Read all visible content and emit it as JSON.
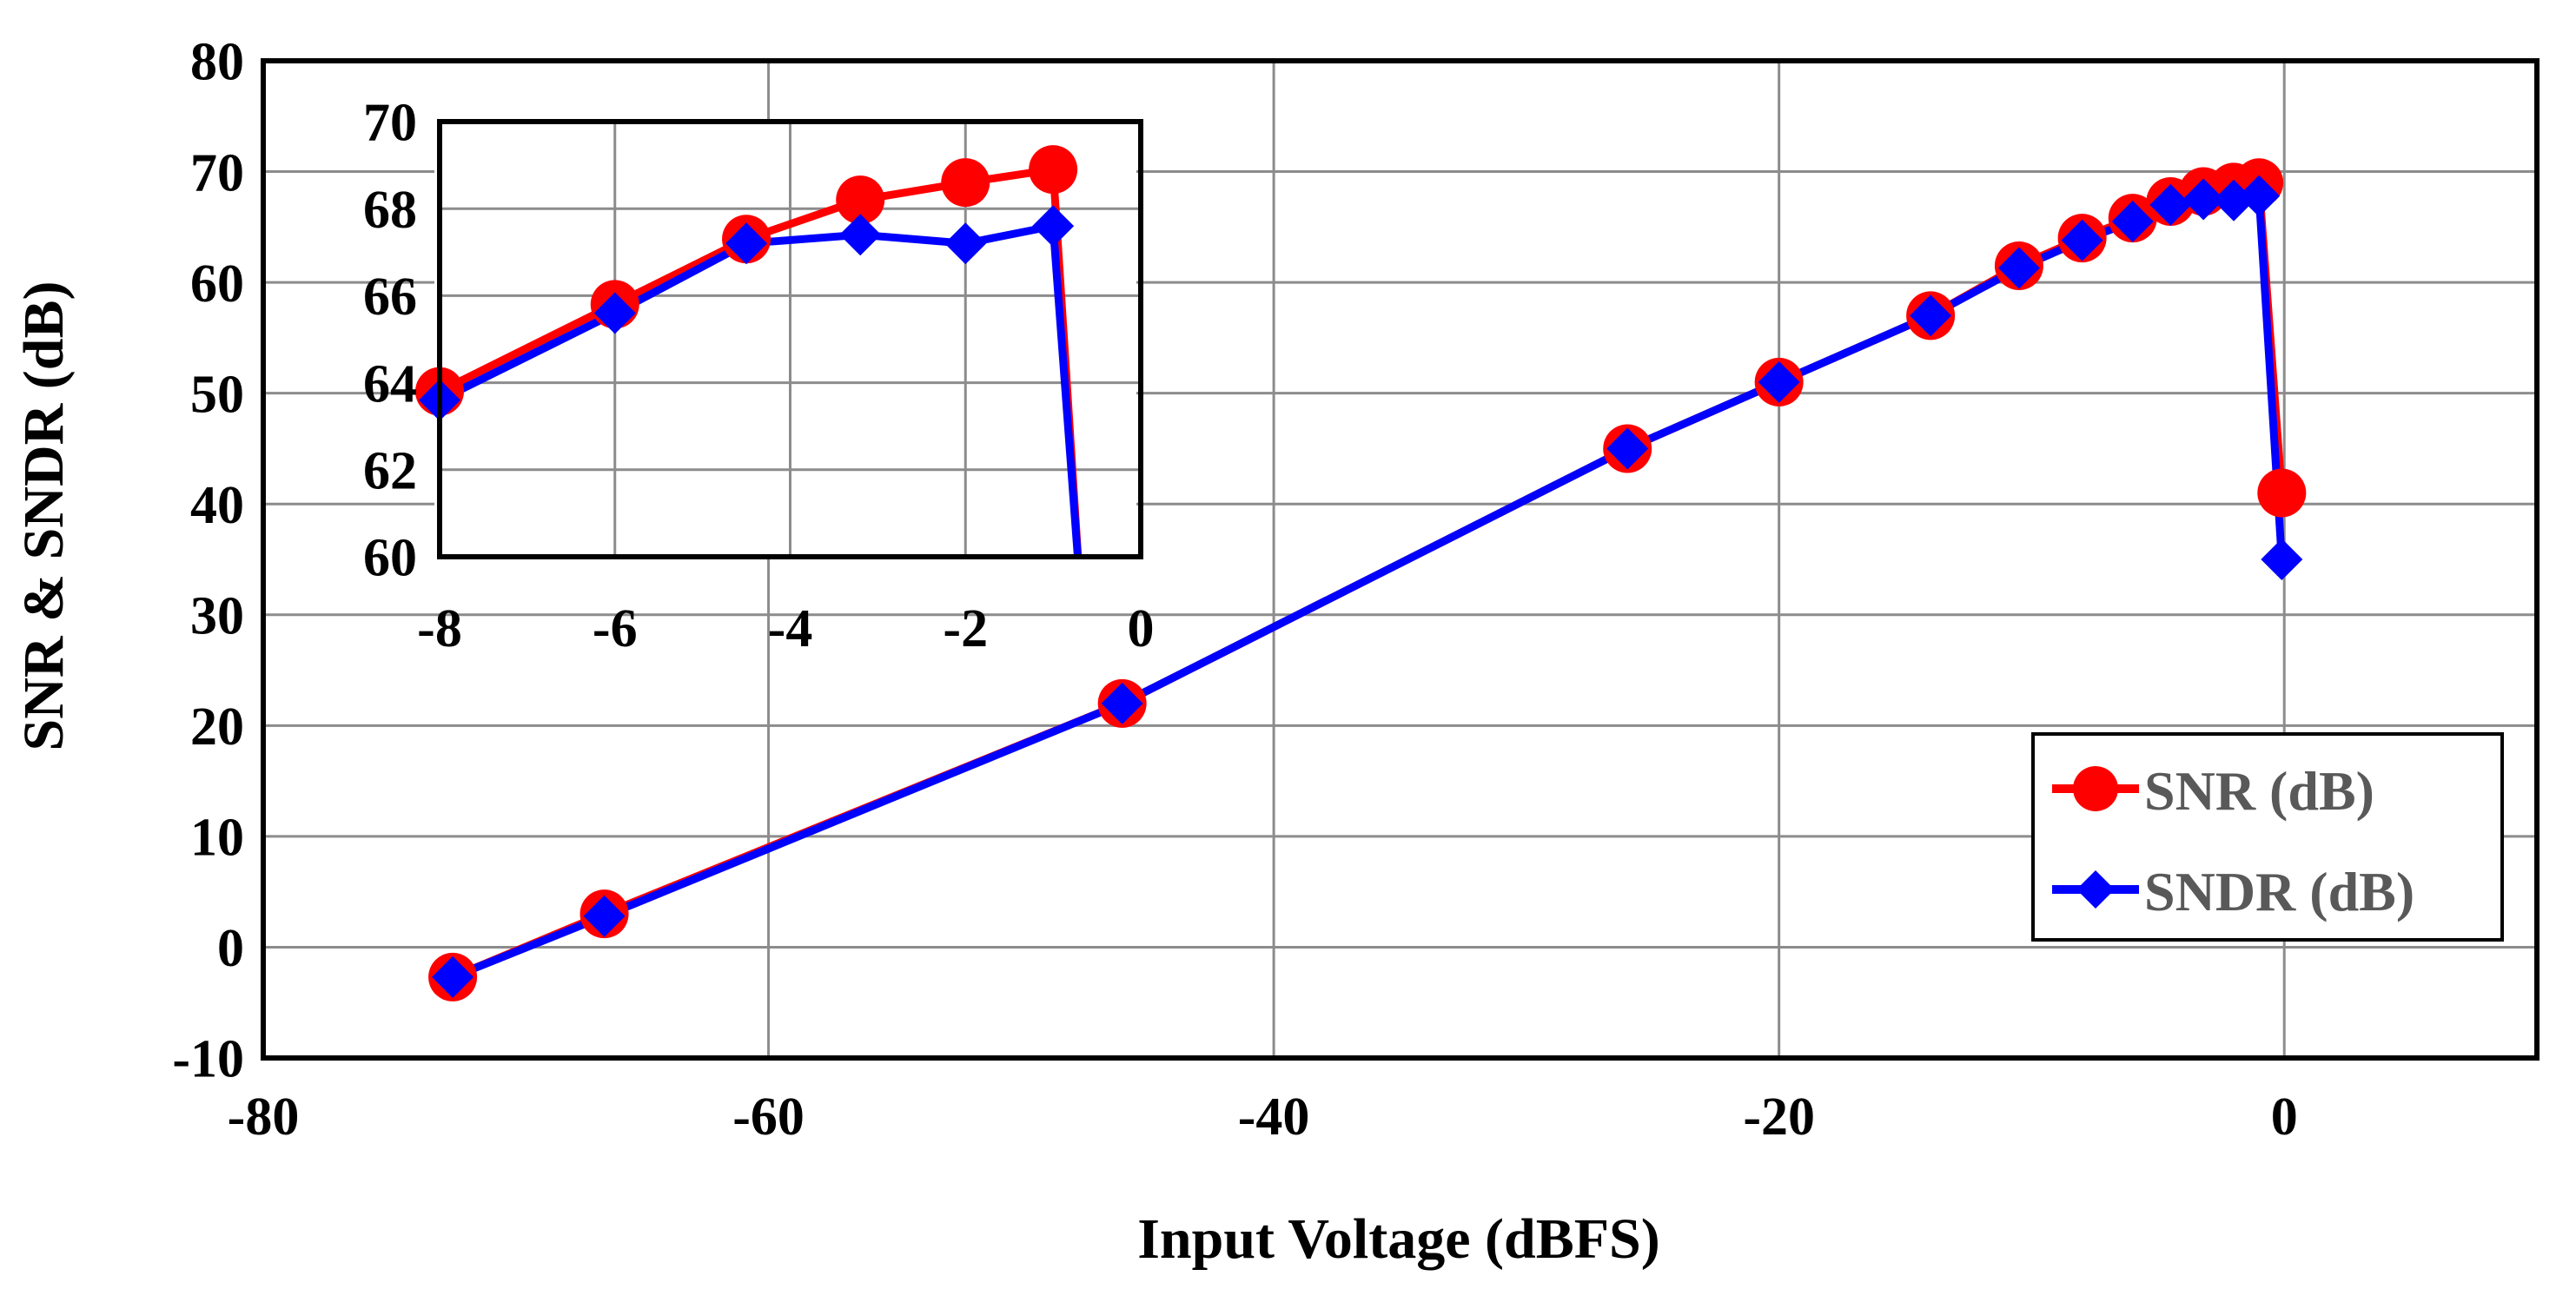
{
  "colors": {
    "snr": "#ff0000",
    "sndr": "#0000ff",
    "grid": "#888888",
    "frame": "#000000",
    "legend_text": "#595959"
  },
  "chart_data": [
    {
      "type": "line",
      "title": "",
      "xlabel": "Input Voltage (dBFS)",
      "ylabel": "SNR & SNDR (dB)",
      "xlim": [
        -80,
        10
      ],
      "ylim": [
        -10,
        80
      ],
      "x_ticks": [
        -80,
        -60,
        -40,
        -20,
        0
      ],
      "x_tick_labels": [
        "-80",
        "-60",
        "-40",
        "-20",
        "0"
      ],
      "y_ticks": [
        -10,
        0,
        10,
        20,
        30,
        40,
        50,
        60,
        70,
        80
      ],
      "y_tick_labels": [
        "-10",
        "0",
        "10",
        "20",
        "30",
        "40",
        "50",
        "60",
        "70",
        "80"
      ],
      "grid": true,
      "legend_position": "bottom-right",
      "series": [
        {
          "name": "SNR (dB)",
          "color": "#ff0000",
          "marker": "circle",
          "x": [
            -72.5,
            -66.5,
            -46.0,
            -26.0,
            -20.0,
            -14.0,
            -10.5,
            -8.0,
            -6.0,
            -4.5,
            -3.2,
            -2.0,
            -1.0,
            -0.1
          ],
          "y": [
            -2.7,
            3.0,
            22.0,
            45.0,
            51.0,
            57.0,
            61.5,
            64.0,
            65.8,
            67.3,
            68.2,
            68.6,
            69.0,
            41.0
          ]
        },
        {
          "name": "SNDR (dB)",
          "color": "#0000ff",
          "marker": "diamond",
          "x": [
            -72.5,
            -66.5,
            -46.0,
            -26.0,
            -20.0,
            -14.0,
            -10.5,
            -8.0,
            -6.0,
            -4.5,
            -3.2,
            -2.0,
            -1.0,
            -0.1
          ],
          "y": [
            -2.7,
            2.8,
            22.0,
            45.0,
            51.0,
            57.0,
            61.3,
            63.8,
            65.5,
            67.0,
            67.5,
            67.4,
            67.8,
            35.0
          ]
        }
      ]
    },
    {
      "type": "line",
      "title": "",
      "xlabel": "",
      "ylabel": "",
      "xlim": [
        -8,
        0
      ],
      "ylim": [
        60,
        70
      ],
      "x_ticks": [
        -8,
        -6,
        -4,
        -2,
        0
      ],
      "x_tick_labels": [
        "-8",
        "-6",
        "-4",
        "-2",
        "0"
      ],
      "y_ticks": [
        60,
        62,
        64,
        66,
        68,
        70
      ],
      "y_tick_labels": [
        "60",
        "62",
        "64",
        "66",
        "68",
        "70"
      ],
      "grid": true,
      "series": [
        {
          "name": "SNR (dB)",
          "color": "#ff0000",
          "marker": "circle",
          "x": [
            -8.0,
            -6.0,
            -4.5,
            -3.2,
            -2.0,
            -1.0,
            -0.7
          ],
          "y": [
            63.8,
            65.8,
            67.3,
            68.2,
            68.6,
            68.9,
            59.5
          ]
        },
        {
          "name": "SNDR (dB)",
          "color": "#0000ff",
          "marker": "diamond",
          "x": [
            -8.0,
            -6.0,
            -4.5,
            -3.2,
            -2.0,
            -1.0,
            -0.7
          ],
          "y": [
            63.6,
            65.6,
            67.2,
            67.4,
            67.2,
            67.6,
            59.5
          ]
        }
      ],
      "series_markers_visible": [
        6,
        6
      ]
    }
  ]
}
